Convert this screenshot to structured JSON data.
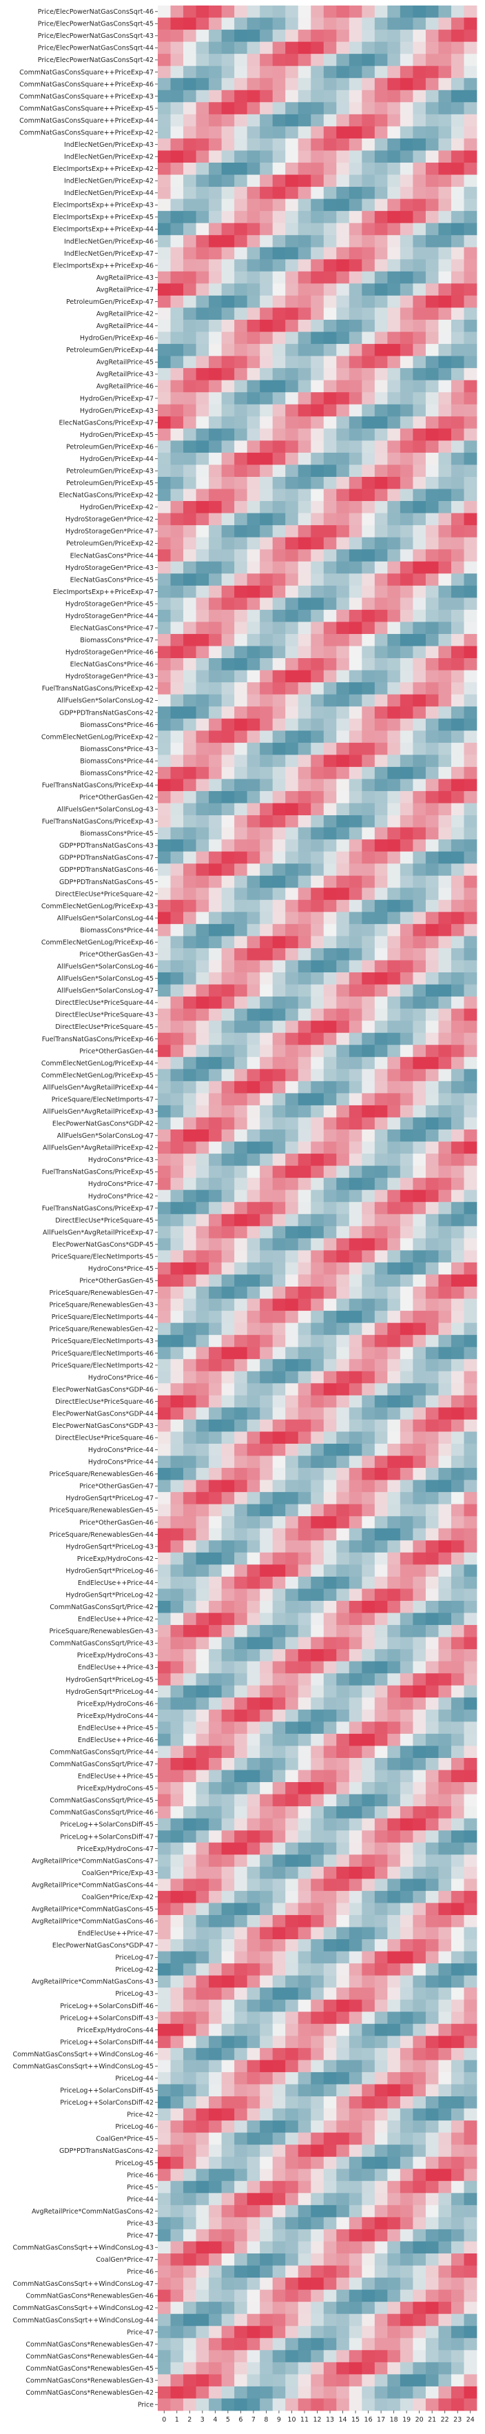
{
  "chart_data": {
    "type": "heatmap",
    "title": "",
    "xlabel": "",
    "ylabel": "",
    "x_ticks": [
      "0",
      "1",
      "2",
      "3",
      "4",
      "5",
      "6",
      "7",
      "8",
      "9",
      "10",
      "11",
      "12",
      "13",
      "14",
      "15",
      "16",
      "17",
      "18",
      "19",
      "20",
      "21",
      "22",
      "23",
      "24"
    ],
    "rows": [
      "Price/ElecPowerNatGasConsSqrt-46",
      "Price/ElecPowerNatGasConsSqrt-45",
      "Price/ElecPowerNatGasConsSqrt-43",
      "Price/ElecPowerNatGasConsSqrt-44",
      "Price/ElecPowerNatGasConsSqrt-42",
      "CommNatGasConsSquare++PriceExp-47",
      "CommNatGasConsSquare++PriceExp-46",
      "CommNatGasConsSquare++PriceExp-43",
      "CommNatGasConsSquare++PriceExp-45",
      "CommNatGasConsSquare++PriceExp-44",
      "CommNatGasConsSquare++PriceExp-42",
      "IndElecNetGen/PriceExp-43",
      "IndElecNetGen/PriceExp-42",
      "ElecImportsExp++PriceExp-42",
      "IndElecNetGen/PriceExp-42",
      "IndElecNetGen/PriceExp-44",
      "ElecImportsExp++PriceExp-43",
      "ElecImportsExp++PriceExp-45",
      "ElecImportsExp++PriceExp-44",
      "IndElecNetGen/PriceExp-46",
      "IndElecNetGen/PriceExp-47",
      "ElecImportsExp++PriceExp-46",
      "AvgRetailPrice-43",
      "AvgRetailPrice-47",
      "PetroleumGen/PriceExp-47",
      "AvgRetailPrice-42",
      "AvgRetailPrice-44",
      "HydroGen/PriceExp-46",
      "PetroleumGen/PriceExp-44",
      "AvgRetailPrice-45",
      "AvgRetailPrice-43",
      "AvgRetailPrice-46",
      "HydroGen/PriceExp-47",
      "HydroGen/PriceExp-43",
      "ElecNatGasCons/PriceExp-47",
      "HydroGen/PriceExp-45",
      "PetroleumGen/PriceExp-46",
      "HydroGen/PriceExp-44",
      "PetroleumGen/PriceExp-43",
      "PetroleumGen/PriceExp-45",
      "ElecNatGasCons/PriceExp-42",
      "HydroGen/PriceExp-42",
      "HydroStorageGen*Price-42",
      "HydroStorageGen*Price-47",
      "PetroleumGen/PriceExp-42",
      "ElecNatGasCons*Price-44",
      "HydroStorageGen*Price-43",
      "ElecNatGasCons*Price-45",
      "ElecImportsExp++PriceExp-47",
      "HydroStorageGen*Price-45",
      "HydroStorageGen*Price-44",
      "ElecNatGasCons*Price-47",
      "BiomassCons*Price-47",
      "HydroStorageGen*Price-46",
      "ElecNatGasCons*Price-46",
      "HydroStorageGen*Price-43",
      "FuelTransNatGasCons/PriceExp-42",
      "AllFuelsGen*SolarConsLog-42",
      "GDP*PDTransNatGasCons-42",
      "BiomassCons*Price-46",
      "CommElecNetGenLog/PriceExp-42",
      "BiomassCons*Price-43",
      "BiomassCons*Price-44",
      "BiomassCons*Price-42",
      "FuelTransNatGasCons/PriceExp-44",
      "Price*OtherGasGen-42",
      "AllFuelsGen*SolarConsLog-43",
      "FuelTransNatGasCons/PriceExp-43",
      "BiomassCons*Price-45",
      "GDP*PDTransNatGasCons-43",
      "GDP*PDTransNatGasCons-47",
      "GDP*PDTransNatGasCons-46",
      "GDP*PDTransNatGasCons-45",
      "DirectElecUse*PriceSquare-42",
      "CommElecNetGenLog/PriceExp-43",
      "AllFuelsGen*SolarConsLog-44",
      "BiomassCons*Price-44",
      "CommElecNetGenLog/PriceExp-46",
      "Price*OtherGasGen-43",
      "AllFuelsGen*SolarConsLog-46",
      "AllFuelsGen*SolarConsLog-45",
      "AllFuelsGen*SolarConsLog-47",
      "DirectElecUse*PriceSquare-44",
      "DirectElecUse*PriceSquare-43",
      "DirectElecUse*PriceSquare-45",
      "FuelTransNatGasCons/PriceExp-46",
      "Price*OtherGasGen-44",
      "CommElecNetGenLog/PriceExp-44",
      "CommElecNetGenLog/PriceExp-45",
      "AllFuelsGen*AvgRetailPriceExp-44",
      "PriceSquare/ElecNetImports-47",
      "AllFuelsGen*AvgRetailPriceExp-43",
      "ElecPowerNatGasCons*GDP-42",
      "AllFuelsGen*SolarConsLog-47",
      "AllFuelsGen*AvgRetailPriceExp-42",
      "HydroCons*Price-43",
      "FuelTransNatGasCons/PriceExp-45",
      "HydroCons*Price-47",
      "HydroCons*Price-42",
      "FuelTransNatGasCons/PriceExp-47",
      "DirectElecUse*PriceSquare-45",
      "AllFuelsGen*AvgRetailPriceExp-47",
      "ElecPowerNatGasCons*GDP-45",
      "PriceSquare/ElecNetImports-45",
      "HydroCons*Price-45",
      "Price*OtherGasGen-45",
      "PriceSquare/RenewablesGen-47",
      "PriceSquare/RenewablesGen-43",
      "PriceSquare/ElecNetImports-44",
      "PriceSquare/RenewablesGen-42",
      "PriceSquare/ElecNetImports-43",
      "PriceSquare/ElecNetImports-46",
      "PriceSquare/ElecNetImports-42",
      "HydroCons*Price-46",
      "ElecPowerNatGasCons*GDP-46",
      "DirectElecUse*PriceSquare-46",
      "ElecPowerNatGasCons*GDP-44",
      "ElecPowerNatGasCons*GDP-43",
      "DirectElecUse*PriceSquare-46",
      "HydroCons*Price-44",
      "HydroCons*Price-44",
      "PriceSquare/RenewablesGen-46",
      "Price*OtherGasGen-47",
      "HydroGenSqrt*PriceLog-47",
      "PriceSquare/RenewablesGen-45",
      "Price*OtherGasGen-46",
      "PriceSquare/RenewablesGen-44",
      "HydroGenSqrt*PriceLog-43",
      "PriceExp/HydroCons-42",
      "HydroGenSqrt*PriceLog-46",
      "EndElecUse++Price-44",
      "HydroGenSqrt*PriceLog-42",
      "CommNatGasConsSqrt/Price-42",
      "EndElecUse++Price-42",
      "PriceSquare/RenewablesGen-43",
      "CommNatGasConsSqrt/Price-43",
      "PriceExp/HydroCons-43",
      "EndElecUse++Price-43",
      "HydroGenSqrt*PriceLog-45",
      "HydroGenSqrt*PriceLog-44",
      "PriceExp/HydroCons-46",
      "PriceExp/HydroCons-44",
      "EndElecUse++Price-45",
      "EndElecUse++Price-46",
      "CommNatGasConsSqrt/Price-44",
      "CommNatGasConsSqrt/Price-47",
      "EndElecUse++Price-45",
      "PriceExp/HydroCons-45",
      "CommNatGasConsSqrt/Price-45",
      "CommNatGasConsSqrt/Price-46",
      "PriceLog++SolarConsDiff-45",
      "PriceLog++SolarConsDiff-47",
      "PriceExp/HydroCons-47",
      "AvgRetailPrice*CommNatGasCons-47",
      "CoalGen*Price/Exp-43",
      "AvgRetailPrice*CommNatGasCons-44",
      "CoalGen*Price/Exp-42",
      "AvgRetailPrice*CommNatGasCons-45",
      "AvgRetailPrice*CommNatGasCons-46",
      "EndElecUse++Price-47",
      "ElecPowerNatGasCons*GDP-47",
      "PriceLog-47",
      "PriceLog-42",
      "AvgRetailPrice*CommNatGasCons-43",
      "PriceLog-43",
      "PriceLog++SolarConsDiff-46",
      "PriceLog++SolarConsDiff-43",
      "PriceExp/HydroCons-44",
      "PriceLog++SolarConsDiff-44",
      "CommNatGasConsSqrt++WindConsLog-46",
      "CommNatGasConsSqrt++WindConsLog-45",
      "PriceLog-44",
      "PriceLog++SolarConsDiff-45",
      "PriceLog++SolarConsDiff-42",
      "Price-42",
      "PriceLog-46",
      "CoalGen*Price-45",
      "GDP*PDTransNatGasCons-42",
      "PriceLog-45",
      "Price-46",
      "Price-45",
      "Price-44",
      "AvgRetailPrice*CommNatGasCons-42",
      "Price-43",
      "Price-47",
      "CommNatGasConsSqrt++WindConsLog-43",
      "CoalGen*Price-47",
      "Price-46",
      "CommNatGasConsSqrt++WindConsLog-47",
      "CommNatGasCons*RenewablesGen-46",
      "CommNatGasConsSqrt++WindConsLog-42",
      "CommNatGasConsSqrt++WindConsLog-44",
      "Price-47",
      "CommNatGasCons*RenewablesGen-47",
      "CommNatGasCons*RenewablesGen-44",
      "CommNatGasCons*RenewablesGen-45",
      "CommNatGasCons*RenewablesGen-43",
      "CommNatGasCons*RenewablesGen-42",
      "Price"
    ],
    "colormap": {
      "low": "#4c8ea3",
      "mid": "#f2f2f2",
      "high": "#e0384f"
    },
    "value_range": [
      -1,
      1
    ],
    "grid": false,
    "legend": "none"
  }
}
